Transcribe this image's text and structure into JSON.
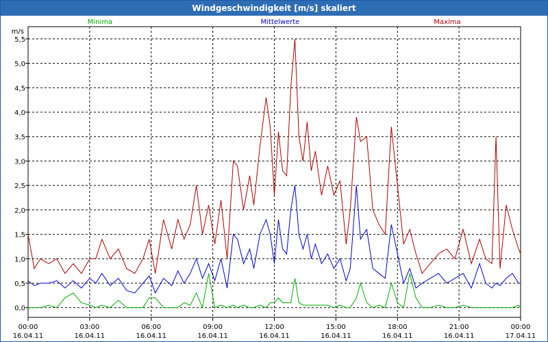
{
  "window": {
    "title": "Windgeschwindigkeit [m/s] skaliert"
  },
  "colors": {
    "minima": "#00aa00",
    "mittel": "#0000cc",
    "maxima": "#aa0000",
    "grid": "#000000",
    "title_bg": "#2e6db4"
  },
  "chart_data": {
    "type": "line",
    "title": "Windgeschwindigkeit [m/s] skaliert",
    "ylabel": "m/s",
    "xlabel": "",
    "ylim": [
      -0.2,
      5.75
    ],
    "xlim": [
      0,
      24
    ],
    "grid": true,
    "legend_position": "top",
    "yticks": [
      {
        "value": 0.0,
        "label": "0,0"
      },
      {
        "value": 0.5,
        "label": "0,5"
      },
      {
        "value": 1.0,
        "label": "1,0"
      },
      {
        "value": 1.5,
        "label": "1,5"
      },
      {
        "value": 2.0,
        "label": "2,0"
      },
      {
        "value": 2.5,
        "label": "2,5"
      },
      {
        "value": 3.0,
        "label": "3,0"
      },
      {
        "value": 3.5,
        "label": "3,5"
      },
      {
        "value": 4.0,
        "label": "4,0"
      },
      {
        "value": 4.5,
        "label": "4,5"
      },
      {
        "value": 5.0,
        "label": "5,0"
      },
      {
        "value": 5.5,
        "label": "5,5"
      }
    ],
    "xticks": [
      {
        "value": 0,
        "time": "00:00",
        "date": "16.04.11"
      },
      {
        "value": 3,
        "time": "03:00",
        "date": "16.04.11"
      },
      {
        "value": 6,
        "time": "06:00",
        "date": "16.04.11"
      },
      {
        "value": 9,
        "time": "09:00",
        "date": "16.04.11"
      },
      {
        "value": 12,
        "time": "12:00",
        "date": "16.04.11"
      },
      {
        "value": 15,
        "time": "15:00",
        "date": "16.04.11"
      },
      {
        "value": 18,
        "time": "18:00",
        "date": "16.04.11"
      },
      {
        "value": 21,
        "time": "21:00",
        "date": "16.04.11"
      },
      {
        "value": 24,
        "time": "00:00",
        "date": "17.04.11"
      }
    ],
    "series": [
      {
        "name": "Maxima",
        "color_key": "maxima",
        "x": [
          0,
          0.3,
          0.6,
          1.0,
          1.4,
          1.8,
          2.2,
          2.6,
          3.0,
          3.3,
          3.6,
          4.0,
          4.4,
          4.8,
          5.2,
          5.6,
          5.9,
          6.2,
          6.6,
          7.0,
          7.3,
          7.6,
          7.9,
          8.2,
          8.5,
          8.8,
          9.1,
          9.4,
          9.7,
          10.0,
          10.2,
          10.5,
          10.8,
          11.0,
          11.3,
          11.6,
          11.8,
          12.0,
          12.2,
          12.4,
          12.6,
          12.8,
          13.0,
          13.2,
          13.4,
          13.6,
          13.8,
          14.0,
          14.3,
          14.6,
          14.9,
          15.2,
          15.5,
          15.7,
          16.0,
          16.2,
          16.5,
          16.8,
          17.1,
          17.4,
          17.7,
          18.0,
          18.3,
          18.6,
          18.9,
          19.2,
          19.6,
          20.0,
          20.4,
          20.8,
          21.2,
          21.6,
          22.0,
          22.3,
          22.6,
          22.8,
          23.0,
          23.3,
          23.6,
          23.9,
          24.0
        ],
        "values": [
          1.5,
          0.8,
          1.0,
          0.9,
          1.0,
          0.7,
          0.9,
          0.7,
          1.0,
          1.0,
          1.4,
          1.0,
          1.2,
          0.8,
          0.7,
          1.0,
          1.4,
          0.7,
          1.8,
          1.2,
          1.8,
          1.4,
          1.7,
          2.5,
          1.5,
          2.1,
          1.3,
          2.2,
          1.0,
          3.0,
          2.9,
          2.0,
          2.7,
          2.1,
          3.3,
          4.3,
          3.7,
          2.3,
          3.6,
          2.8,
          2.7,
          4.5,
          5.5,
          3.5,
          3.0,
          3.8,
          2.8,
          3.2,
          2.3,
          2.9,
          2.3,
          2.6,
          1.3,
          2.0,
          3.9,
          3.4,
          3.5,
          2.0,
          1.7,
          1.5,
          3.7,
          2.5,
          1.3,
          1.6,
          1.1,
          0.7,
          0.9,
          1.1,
          1.2,
          1.0,
          1.6,
          0.9,
          1.4,
          1.0,
          0.9,
          3.5,
          0.8,
          2.1,
          1.6,
          1.2,
          1.1
        ]
      },
      {
        "name": "Mittelwerte",
        "color_key": "mittel",
        "x": [
          0,
          0.3,
          0.6,
          1.0,
          1.4,
          1.8,
          2.2,
          2.6,
          3.0,
          3.3,
          3.6,
          4.0,
          4.4,
          4.8,
          5.2,
          5.6,
          5.9,
          6.2,
          6.6,
          7.0,
          7.3,
          7.6,
          7.9,
          8.2,
          8.5,
          8.8,
          9.1,
          9.4,
          9.7,
          10.0,
          10.2,
          10.5,
          10.8,
          11.0,
          11.3,
          11.6,
          11.8,
          12.0,
          12.2,
          12.4,
          12.6,
          12.8,
          13.0,
          13.2,
          13.4,
          13.6,
          13.8,
          14.0,
          14.3,
          14.6,
          14.9,
          15.2,
          15.5,
          15.7,
          16.0,
          16.2,
          16.5,
          16.8,
          17.1,
          17.4,
          17.7,
          18.0,
          18.3,
          18.6,
          18.9,
          19.2,
          19.6,
          20.0,
          20.4,
          20.8,
          21.2,
          21.6,
          22.0,
          22.3,
          22.6,
          22.8,
          23.0,
          23.3,
          23.6,
          23.9,
          24.0
        ],
        "values": [
          0.55,
          0.45,
          0.5,
          0.5,
          0.55,
          0.4,
          0.55,
          0.4,
          0.6,
          0.5,
          0.7,
          0.45,
          0.6,
          0.35,
          0.3,
          0.5,
          0.65,
          0.3,
          0.6,
          0.45,
          0.75,
          0.5,
          0.7,
          1.0,
          0.6,
          0.9,
          0.55,
          1.0,
          0.4,
          1.5,
          1.4,
          0.9,
          1.2,
          0.8,
          1.5,
          1.8,
          1.5,
          0.9,
          1.8,
          1.2,
          1.1,
          2.0,
          2.5,
          1.5,
          1.2,
          1.5,
          1.0,
          1.3,
          0.9,
          1.1,
          0.8,
          1.0,
          0.55,
          0.8,
          2.5,
          1.4,
          1.6,
          0.8,
          0.7,
          0.6,
          1.7,
          1.1,
          0.5,
          0.8,
          0.4,
          0.5,
          0.6,
          0.7,
          0.5,
          0.6,
          0.7,
          0.4,
          0.9,
          0.5,
          0.4,
          0.5,
          0.45,
          0.6,
          0.7,
          0.5,
          0.5
        ]
      },
      {
        "name": "Minima",
        "color_key": "minima",
        "x": [
          0,
          0.3,
          0.6,
          1.0,
          1.4,
          1.8,
          2.2,
          2.6,
          3.0,
          3.3,
          3.6,
          4.0,
          4.4,
          4.8,
          5.2,
          5.6,
          5.9,
          6.2,
          6.6,
          7.0,
          7.3,
          7.6,
          7.9,
          8.2,
          8.5,
          8.8,
          9.1,
          9.4,
          9.7,
          10.0,
          10.2,
          10.5,
          10.8,
          11.0,
          11.3,
          11.6,
          11.8,
          12.0,
          12.2,
          12.4,
          12.6,
          12.8,
          13.0,
          13.2,
          13.4,
          13.6,
          13.8,
          14.0,
          14.3,
          14.6,
          14.9,
          15.2,
          15.5,
          15.7,
          16.0,
          16.2,
          16.5,
          16.8,
          17.1,
          17.4,
          17.7,
          18.0,
          18.3,
          18.6,
          18.9,
          19.2,
          19.6,
          20.0,
          20.4,
          20.8,
          21.2,
          21.6,
          22.0,
          22.3,
          22.6,
          22.8,
          23.0,
          23.3,
          23.6,
          23.9,
          24.0
        ],
        "values": [
          0.0,
          0.0,
          0.0,
          0.05,
          0.0,
          0.2,
          0.3,
          0.1,
          0.05,
          0.0,
          0.05,
          0.0,
          0.15,
          0.0,
          0.0,
          0.0,
          0.2,
          0.2,
          0.0,
          0.0,
          0.0,
          0.1,
          0.05,
          0.3,
          0.0,
          0.7,
          0.0,
          0.05,
          0.0,
          0.05,
          0.0,
          0.05,
          0.0,
          0.0,
          0.05,
          0.0,
          0.1,
          0.1,
          0.2,
          0.1,
          0.1,
          0.1,
          0.6,
          0.1,
          0.05,
          0.05,
          0.05,
          0.05,
          0.05,
          0.05,
          0.0,
          0.05,
          0.0,
          0.0,
          0.2,
          0.5,
          0.1,
          0.0,
          0.05,
          0.0,
          0.5,
          0.1,
          0.0,
          0.7,
          0.2,
          0.0,
          0.0,
          0.05,
          0.0,
          0.0,
          0.05,
          0.0,
          0.0,
          0.0,
          0.0,
          0.0,
          0.0,
          0.0,
          0.0,
          0.05,
          0.0
        ]
      }
    ]
  }
}
